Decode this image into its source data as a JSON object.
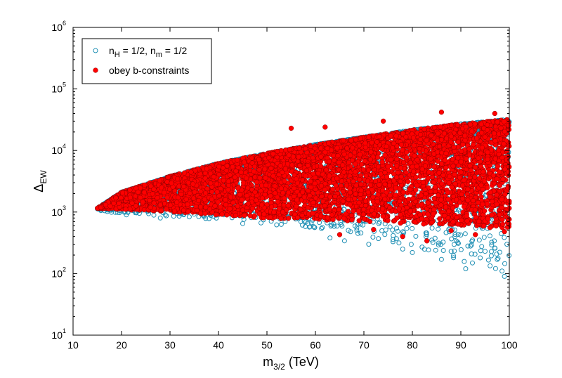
{
  "chart_data": {
    "type": "scatter",
    "xlabel": {
      "main": "m",
      "sub": "3/2",
      "tail": " (TeV)"
    },
    "ylabel": {
      "main": "Δ",
      "sub": "EW"
    },
    "xlim": [
      10,
      100
    ],
    "ylim": [
      10,
      1000000
    ],
    "yscale": "log",
    "x_ticks": [
      "10",
      "20",
      "30",
      "40",
      "50",
      "60",
      "70",
      "80",
      "90",
      "100"
    ],
    "y_ticks": [
      {
        "base": "10",
        "exp": "1"
      },
      {
        "base": "10",
        "exp": "2"
      },
      {
        "base": "10",
        "exp": "3"
      },
      {
        "base": "10",
        "exp": "4"
      },
      {
        "base": "10",
        "exp": "5"
      },
      {
        "base": "10",
        "exp": "6"
      }
    ],
    "grid": false,
    "legend_placement": "top-left",
    "legend": [
      {
        "marker": "o",
        "color": "#1f8fb4",
        "parts": [
          {
            "t": "n"
          },
          {
            "t": "H",
            "sub": true
          },
          {
            "t": " = 1/2, n"
          },
          {
            "t": "m",
            "sub": true
          },
          {
            "t": " = 1/2"
          }
        ]
      },
      {
        "marker": "*",
        "color": "#ff0000",
        "parts": [
          {
            "t": "obey b-constraints"
          }
        ]
      }
    ],
    "series": [
      {
        "key": "nH_nm",
        "marker": "circle",
        "color": "#1f8fb4",
        "upper_envelope": [
          [
            15,
            1150
          ],
          [
            20,
            2100
          ],
          [
            30,
            3800
          ],
          [
            40,
            6200
          ],
          [
            50,
            9000
          ],
          [
            60,
            12500
          ],
          [
            70,
            16500
          ],
          [
            80,
            21500
          ],
          [
            90,
            27000
          ],
          [
            100,
            32000
          ]
        ],
        "lower_envelope": [
          [
            15,
            1050
          ],
          [
            20,
            950
          ],
          [
            30,
            850
          ],
          [
            40,
            750
          ],
          [
            50,
            650
          ],
          [
            60,
            550
          ],
          [
            70,
            420
          ],
          [
            80,
            280
          ],
          [
            90,
            160
          ],
          [
            100,
            90
          ]
        ],
        "outliers": [
          [
            16.5,
            1050
          ],
          [
            21,
            900
          ],
          [
            28,
            800
          ],
          [
            37,
            850
          ],
          [
            45,
            650
          ],
          [
            52,
            620
          ],
          [
            57,
            700
          ],
          [
            63,
            380
          ],
          [
            66,
            340
          ],
          [
            71,
            300
          ],
          [
            73,
            370
          ],
          [
            76,
            330
          ],
          [
            78,
            250
          ],
          [
            80,
            220
          ],
          [
            82,
            270
          ],
          [
            84,
            350
          ],
          [
            86,
            170
          ],
          [
            88,
            230
          ],
          [
            89.5,
            310
          ],
          [
            91,
            120
          ],
          [
            92,
            280
          ],
          [
            94,
            180
          ],
          [
            95,
            230
          ],
          [
            96,
            410
          ],
          [
            97,
            260
          ],
          [
            98.5,
            110
          ],
          [
            99,
            90
          ],
          [
            99.5,
            300
          ]
        ]
      },
      {
        "key": "obey",
        "marker": "star",
        "color": "#ff0000",
        "upper_envelope": [
          [
            15,
            1150
          ],
          [
            20,
            2100
          ],
          [
            30,
            3800
          ],
          [
            40,
            6200
          ],
          [
            50,
            9000
          ],
          [
            60,
            12500
          ],
          [
            70,
            16500
          ],
          [
            80,
            21500
          ],
          [
            90,
            27000
          ],
          [
            100,
            32000
          ]
        ],
        "lower_envelope": [
          [
            15,
            1150
          ],
          [
            20,
            1100
          ],
          [
            30,
            1000
          ],
          [
            40,
            900
          ],
          [
            50,
            800
          ],
          [
            60,
            750
          ],
          [
            70,
            700
          ],
          [
            80,
            650
          ],
          [
            90,
            600
          ],
          [
            100,
            550
          ]
        ],
        "peaks": [
          [
            86,
            42000
          ],
          [
            97,
            40000
          ],
          [
            74,
            30000
          ],
          [
            62,
            24000
          ],
          [
            55,
            23000
          ]
        ],
        "outliers": [
          [
            65,
            430
          ],
          [
            72,
            520
          ],
          [
            78,
            400
          ],
          [
            83,
            340
          ],
          [
            88,
            500
          ],
          [
            93,
            430
          ],
          [
            96,
            560
          ],
          [
            99,
            480
          ]
        ]
      }
    ]
  }
}
